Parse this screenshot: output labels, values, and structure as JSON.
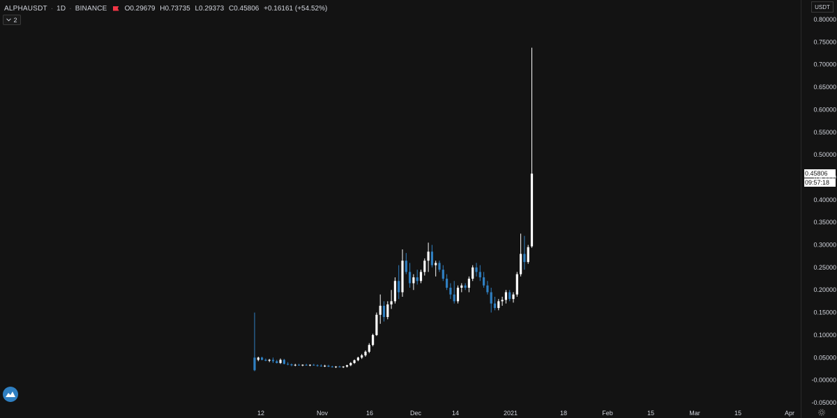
{
  "legend": {
    "symbol": "ALPHAUSDT",
    "interval": "1D",
    "exchange": "BINANCE",
    "open_label": "O",
    "open": "0.29679",
    "high_label": "H",
    "high": "0.73735",
    "low_label": "L",
    "low": "0.29373",
    "close_label": "C",
    "close": "0.45806",
    "change": "+0.16161 (+54.52%)"
  },
  "indicators_toggle": {
    "label": "2",
    "icon": "chevron-down-icon"
  },
  "price_axis": {
    "currency": "USDT",
    "last_price": "0.45806",
    "countdown": "09:57:18",
    "tick_labels": [
      "0.80000",
      "0.75000",
      "0.70000",
      "0.65000",
      "0.60000",
      "0.55000",
      "0.50000",
      "0.45000",
      "0.40000",
      "0.35000",
      "0.30000",
      "0.25000",
      "0.20000",
      "0.15000",
      "0.10000",
      "0.05000",
      "-0.00000",
      "-0.05000"
    ]
  },
  "time_axis": {
    "tick_labels": [
      "12",
      "Nov",
      "16",
      "Dec",
      "14",
      "2021",
      "18",
      "Feb",
      "15",
      "Mar",
      "15",
      "Apr"
    ]
  },
  "colors": {
    "background": "#131313",
    "up_candle": "#ffffff",
    "down_candle": "#2f7fc1",
    "text": "#d1d4dc",
    "flag": "#f23645"
  },
  "chart_data": {
    "type": "candlestick",
    "title": "",
    "ylim": [
      -0.05,
      0.8
    ],
    "x_ticks": [
      "12",
      "Nov",
      "16",
      "Dec",
      "14",
      "2021",
      "18",
      "Feb",
      "15",
      "Mar",
      "15",
      "Apr"
    ],
    "series": [
      {
        "ohlc": [
          [
            0.05,
            0.15,
            0.02,
            0.022
          ],
          [
            0.045,
            0.052,
            0.042,
            0.05
          ],
          [
            0.05,
            0.052,
            0.044,
            0.045
          ],
          [
            0.045,
            0.048,
            0.042,
            0.043
          ],
          [
            0.043,
            0.047,
            0.04,
            0.045
          ],
          [
            0.045,
            0.05,
            0.038,
            0.042
          ],
          [
            0.042,
            0.045,
            0.037,
            0.038
          ],
          [
            0.038,
            0.048,
            0.036,
            0.045
          ],
          [
            0.045,
            0.047,
            0.035,
            0.036
          ],
          [
            0.036,
            0.04,
            0.033,
            0.035
          ],
          [
            0.035,
            0.037,
            0.031,
            0.033
          ],
          [
            0.033,
            0.036,
            0.031,
            0.034
          ],
          [
            0.034,
            0.036,
            0.032,
            0.033
          ],
          [
            0.033,
            0.035,
            0.031,
            0.034
          ],
          [
            0.034,
            0.036,
            0.032,
            0.033
          ],
          [
            0.033,
            0.035,
            0.031,
            0.034
          ],
          [
            0.034,
            0.036,
            0.032,
            0.033
          ],
          [
            0.033,
            0.035,
            0.03,
            0.032
          ],
          [
            0.032,
            0.035,
            0.03,
            0.031
          ],
          [
            0.031,
            0.034,
            0.029,
            0.032
          ],
          [
            0.032,
            0.034,
            0.029,
            0.03
          ],
          [
            0.03,
            0.032,
            0.028,
            0.029
          ],
          [
            0.029,
            0.031,
            0.027,
            0.03
          ],
          [
            0.03,
            0.032,
            0.028,
            0.029
          ],
          [
            0.029,
            0.031,
            0.027,
            0.03
          ],
          [
            0.03,
            0.034,
            0.028,
            0.033
          ],
          [
            0.033,
            0.04,
            0.031,
            0.038
          ],
          [
            0.038,
            0.046,
            0.036,
            0.044
          ],
          [
            0.044,
            0.052,
            0.042,
            0.05
          ],
          [
            0.05,
            0.058,
            0.047,
            0.055
          ],
          [
            0.055,
            0.066,
            0.052,
            0.063
          ],
          [
            0.063,
            0.082,
            0.06,
            0.078
          ],
          [
            0.078,
            0.103,
            0.075,
            0.1
          ],
          [
            0.1,
            0.15,
            0.098,
            0.145
          ],
          [
            0.145,
            0.19,
            0.125,
            0.165
          ],
          [
            0.165,
            0.175,
            0.13,
            0.14
          ],
          [
            0.14,
            0.175,
            0.135,
            0.168
          ],
          [
            0.168,
            0.2,
            0.158,
            0.175
          ],
          [
            0.175,
            0.228,
            0.17,
            0.22
          ],
          [
            0.22,
            0.255,
            0.18,
            0.195
          ],
          [
            0.195,
            0.29,
            0.185,
            0.265
          ],
          [
            0.265,
            0.282,
            0.235,
            0.24
          ],
          [
            0.24,
            0.26,
            0.205,
            0.215
          ],
          [
            0.215,
            0.235,
            0.2,
            0.228
          ],
          [
            0.228,
            0.245,
            0.212,
            0.22
          ],
          [
            0.22,
            0.245,
            0.215,
            0.24
          ],
          [
            0.24,
            0.27,
            0.232,
            0.265
          ],
          [
            0.265,
            0.305,
            0.24,
            0.285
          ],
          [
            0.285,
            0.3,
            0.25,
            0.255
          ],
          [
            0.255,
            0.265,
            0.23,
            0.26
          ],
          [
            0.26,
            0.265,
            0.24,
            0.245
          ],
          [
            0.245,
            0.255,
            0.22,
            0.225
          ],
          [
            0.225,
            0.235,
            0.2,
            0.205
          ],
          [
            0.205,
            0.215,
            0.18,
            0.19
          ],
          [
            0.19,
            0.22,
            0.17,
            0.175
          ],
          [
            0.175,
            0.21,
            0.17,
            0.205
          ],
          [
            0.205,
            0.215,
            0.195,
            0.21
          ],
          [
            0.21,
            0.215,
            0.2,
            0.205
          ],
          [
            0.205,
            0.23,
            0.195,
            0.225
          ],
          [
            0.225,
            0.255,
            0.22,
            0.25
          ],
          [
            0.25,
            0.26,
            0.23,
            0.24
          ],
          [
            0.24,
            0.255,
            0.22,
            0.228
          ],
          [
            0.228,
            0.24,
            0.205,
            0.21
          ],
          [
            0.21,
            0.22,
            0.19,
            0.195
          ],
          [
            0.195,
            0.205,
            0.15,
            0.17
          ],
          [
            0.17,
            0.185,
            0.155,
            0.16
          ],
          [
            0.16,
            0.18,
            0.155,
            0.175
          ],
          [
            0.175,
            0.185,
            0.165,
            0.178
          ],
          [
            0.178,
            0.2,
            0.17,
            0.195
          ],
          [
            0.195,
            0.2,
            0.175,
            0.18
          ],
          [
            0.18,
            0.195,
            0.172,
            0.19
          ],
          [
            0.19,
            0.24,
            0.185,
            0.235
          ],
          [
            0.235,
            0.325,
            0.23,
            0.28
          ],
          [
            0.28,
            0.32,
            0.245,
            0.262
          ],
          [
            0.262,
            0.3,
            0.258,
            0.295
          ],
          [
            0.29679,
            0.73735,
            0.29373,
            0.45806
          ]
        ]
      }
    ]
  }
}
